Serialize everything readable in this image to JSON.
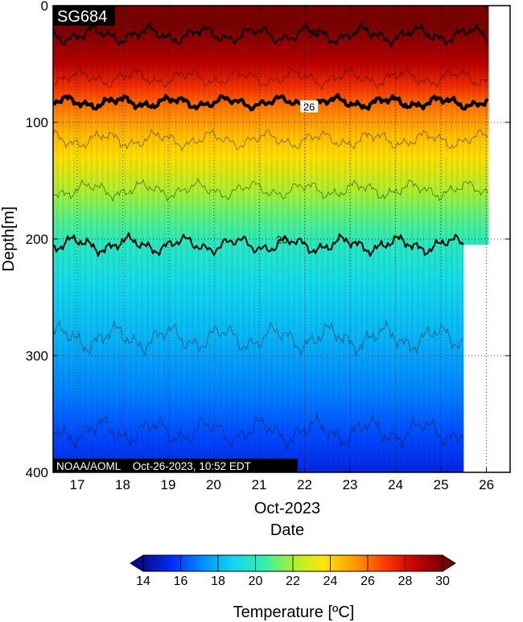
{
  "chart_data": {
    "type": "heatmap",
    "title": "SG684",
    "footer": "NOAA/AOML    Oct-26-2023, 10:52 EDT",
    "xlabel_month": "Oct-2023",
    "xlabel": "Date",
    "ylabel": "Depth[m]",
    "x_ticks": [
      17,
      18,
      19,
      20,
      21,
      22,
      23,
      24,
      25,
      26
    ],
    "x_range": [
      16.47,
      26.52
    ],
    "y_ticks": [
      0,
      100,
      200,
      300,
      400
    ],
    "y_range": [
      0,
      400
    ],
    "y_reversed": true,
    "grid": true,
    "data_end_day": 25.5,
    "shallow_end_day": 26.05,
    "shallow_max_depth": 205,
    "colorbar": {
      "label": "Temperature [ºC]",
      "ticks": [
        14,
        16,
        18,
        20,
        22,
        24,
        26,
        28,
        30
      ],
      "range": [
        14,
        30
      ],
      "colors": [
        "#0a0a8c",
        "#0030ff",
        "#0090ff",
        "#10d8f0",
        "#30f0b0",
        "#a8f030",
        "#ffe800",
        "#ffa000",
        "#ff4000",
        "#d00000",
        "#7a0000"
      ]
    },
    "temperature_profile": [
      {
        "depth": 0,
        "temp": 30.4
      },
      {
        "depth": 20,
        "temp": 30.0
      },
      {
        "depth": 50,
        "temp": 28.8
      },
      {
        "depth": 70,
        "temp": 27.2
      },
      {
        "depth": 85,
        "temp": 26.0
      },
      {
        "depth": 110,
        "temp": 24.6
      },
      {
        "depth": 130,
        "temp": 23.8
      },
      {
        "depth": 160,
        "temp": 22.0
      },
      {
        "depth": 180,
        "temp": 21.0
      },
      {
        "depth": 203,
        "temp": 20.0
      },
      {
        "depth": 240,
        "temp": 18.9
      },
      {
        "depth": 285,
        "temp": 18.0
      },
      {
        "depth": 330,
        "temp": 17.0
      },
      {
        "depth": 370,
        "temp": 16.0
      },
      {
        "depth": 400,
        "temp": 15.2
      }
    ],
    "contours": [
      {
        "level": 30,
        "label": "30",
        "mean_depth": 25,
        "style": "medium",
        "label_day": 22.2
      },
      {
        "level": 28,
        "label": "",
        "mean_depth": 62,
        "style": "thin",
        "label_day": null
      },
      {
        "level": 26,
        "label": "26",
        "mean_depth": 83,
        "style": "bold",
        "label_day": 22.1
      },
      {
        "level": 24,
        "label": "",
        "mean_depth": 115,
        "style": "thin",
        "label_day": null
      },
      {
        "level": 22,
        "label": "",
        "mean_depth": 158,
        "style": "thin",
        "label_day": null
      },
      {
        "level": 20,
        "label": "20",
        "mean_depth": 205,
        "style": "medium",
        "label_day": 21.5
      },
      {
        "level": 18,
        "label": "",
        "mean_depth": 285,
        "style": "thin",
        "label_day": null
      },
      {
        "level": 16,
        "label": "",
        "mean_depth": 365,
        "style": "thin",
        "label_day": null
      }
    ]
  }
}
